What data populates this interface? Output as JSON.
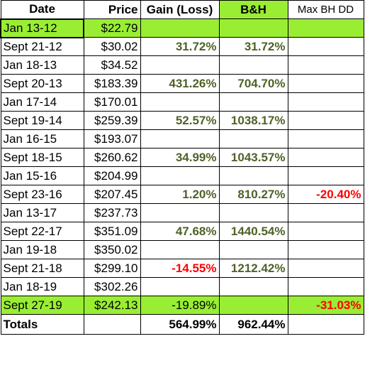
{
  "headers": {
    "date": "Date",
    "price": "Price",
    "gain": "Gain (Loss)",
    "bh": "B&H",
    "dd": "Max BH DD"
  },
  "colors": {
    "highlight": "#99ee33",
    "positive": "#4f6228",
    "negative": "#ff0000"
  },
  "rows": [
    {
      "date": "Jan 13-12",
      "price": "$22.79",
      "gain": "",
      "bh": "",
      "dd": ""
    },
    {
      "date": "Sept 21-12",
      "price": "$30.02",
      "gain": "31.72%",
      "bh": "31.72%",
      "dd": ""
    },
    {
      "date": "Jan 18-13",
      "price": "$34.52",
      "gain": "",
      "bh": "",
      "dd": ""
    },
    {
      "date": "Sept 20-13",
      "price": "$183.39",
      "gain": "431.26%",
      "bh": "704.70%",
      "dd": ""
    },
    {
      "date": "Jan 17-14",
      "price": "$170.01",
      "gain": "",
      "bh": "",
      "dd": ""
    },
    {
      "date": "Sept 19-14",
      "price": "$259.39",
      "gain": "52.57%",
      "bh": "1038.17%",
      "dd": ""
    },
    {
      "date": "Jan 16-15",
      "price": "$193.07",
      "gain": "",
      "bh": "",
      "dd": ""
    },
    {
      "date": "Sept 18-15",
      "price": "$260.62",
      "gain": "34.99%",
      "bh": "1043.57%",
      "dd": ""
    },
    {
      "date": "Jan 15-16",
      "price": "$204.99",
      "gain": "",
      "bh": "",
      "dd": ""
    },
    {
      "date": "Sept 23-16",
      "price": "$207.45",
      "gain": "1.20%",
      "bh": "810.27%",
      "dd": "-20.40%"
    },
    {
      "date": "Jan 13-17",
      "price": "$237.73",
      "gain": "",
      "bh": "",
      "dd": ""
    },
    {
      "date": "Sept 22-17",
      "price": "$351.09",
      "gain": "47.68%",
      "bh": "1440.54%",
      "dd": ""
    },
    {
      "date": "Jan 19-18",
      "price": "$350.02",
      "gain": "",
      "bh": "",
      "dd": ""
    },
    {
      "date": "Sept 21-18",
      "price": "$299.10",
      "gain": "-14.55%",
      "bh": "1212.42%",
      "dd": ""
    },
    {
      "date": "Jan 18-19",
      "price": "$302.26",
      "gain": "",
      "bh": "",
      "dd": ""
    },
    {
      "date": "Sept 27-19",
      "price": "$242.13",
      "gain": "-19.89%",
      "bh": "",
      "dd": "-31.03%"
    }
  ],
  "totals": {
    "label": "Totals",
    "price": "",
    "gain": "564.99%",
    "bh": "962.44%",
    "dd": ""
  }
}
